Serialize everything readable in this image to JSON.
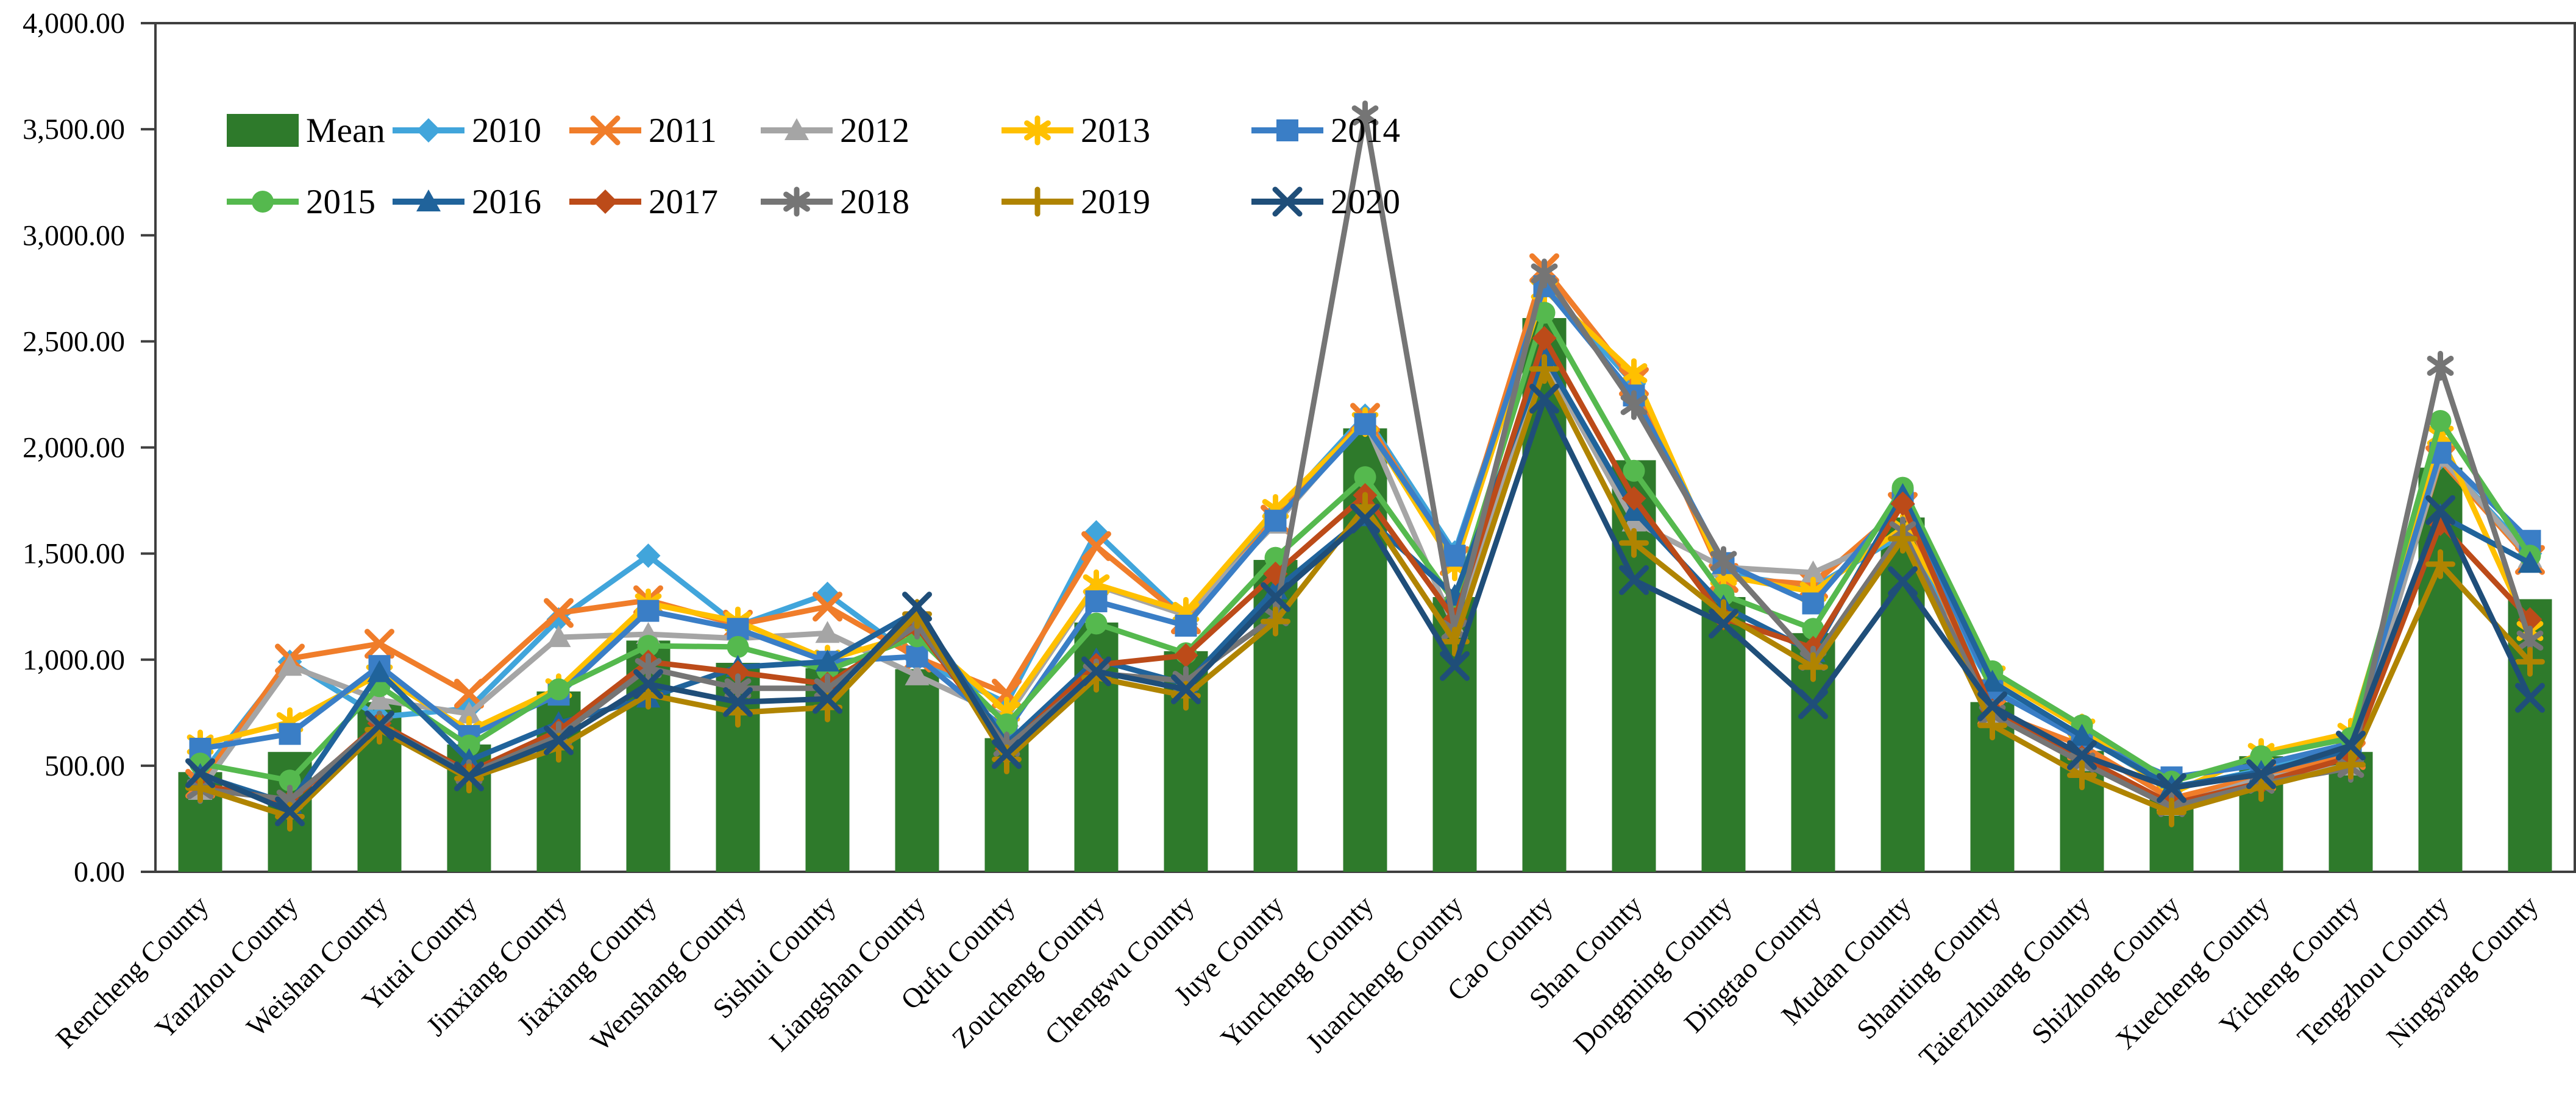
{
  "page": {
    "background": "#ffffff"
  },
  "chart_data": {
    "type": "bar",
    "subtype": "bar-line-combo",
    "title": "",
    "xlabel": "",
    "ylabel": "",
    "ylim": [
      0,
      4000
    ],
    "ytick_step": 500,
    "ytick_labels": [
      "0.00",
      "500.00",
      "1,000.00",
      "1,500.00",
      "2,000.00",
      "2,500.00",
      "3,000.00",
      "3,500.00",
      "4,000.00"
    ],
    "grid": false,
    "legend_position": "top-left-inside",
    "legend_rows": [
      [
        "Mean",
        "2010",
        "2011",
        "2012",
        "2013",
        "2014"
      ],
      [
        "2015",
        "2016",
        "2017",
        "2018",
        "2019",
        "2020"
      ]
    ],
    "categories": [
      "Rencheng County",
      "Yanzhou County",
      "Weishan County",
      "Yutai County",
      "Jinxiang County",
      "Jiaxiang County",
      "Wenshang County",
      "Sishui County",
      "Liangshan County",
      "Qufu County",
      "Zoucheng County",
      "Chengwu County",
      "Juye County",
      "Yuncheng County",
      "Juancheng County",
      "Cao County",
      "Shan County",
      "Dongming County",
      "Dingtao County",
      "Mudan County",
      "Shanting County",
      "Taierzhuang County",
      "Shizhong County",
      "Xuecheng County",
      "Yicheng County",
      "Tengzhou County",
      "Ningyang County"
    ],
    "bar_series": {
      "name": "Mean",
      "color": "#2E7A2B",
      "values": [
        470,
        565,
        800,
        600,
        850,
        1090,
        985,
        960,
        955,
        630,
        1175,
        1040,
        1470,
        2090,
        1295,
        2610,
        1940,
        1295,
        1125,
        1670,
        800,
        570,
        350,
        545,
        565,
        1905,
        1285
      ]
    },
    "series": [
      {
        "name": "2010",
        "color": "#41A5DB",
        "marker": "diamond",
        "values": [
          450,
          990,
          730,
          770,
          1190,
          1490,
          1160,
          1310,
          1000,
          795,
          1600,
          1195,
          1690,
          2150,
          1505,
          2770,
          2300,
          1405,
          1340,
          1590,
          870,
          645,
          390,
          480,
          590,
          1950,
          1500
        ]
      },
      {
        "name": "2011",
        "color": "#F07D2A",
        "marker": "x",
        "values": [
          415,
          1005,
          1075,
          840,
          1220,
          1280,
          1165,
          1250,
          1010,
          840,
          1535,
          1190,
          1660,
          2140,
          1465,
          2845,
          2310,
          1385,
          1355,
          1720,
          755,
          595,
          345,
          450,
          550,
          1940,
          1470
        ]
      },
      {
        "name": "2012",
        "color": "#A5A5A5",
        "marker": "triangle",
        "values": [
          385,
          970,
          810,
          745,
          1105,
          1120,
          1100,
          1125,
          925,
          730,
          1350,
          1210,
          1640,
          2125,
          1150,
          2410,
          1650,
          1435,
          1410,
          1600,
          745,
          520,
          310,
          440,
          500,
          1955,
          1480
        ]
      },
      {
        "name": "2013",
        "color": "#FFC000",
        "marker": "star",
        "values": [
          600,
          705,
          930,
          665,
          865,
          1265,
          1180,
          1000,
          1125,
          755,
          1355,
          1225,
          1710,
          2120,
          1440,
          2745,
          2350,
          1395,
          1320,
          1620,
          925,
          675,
          370,
          560,
          655,
          2055,
          1135
        ]
      },
      {
        "name": "2014",
        "color": "#3A7EC6",
        "marker": "square",
        "values": [
          580,
          650,
          970,
          640,
          835,
          1230,
          1145,
          990,
          1015,
          665,
          1275,
          1160,
          1655,
          2110,
          1490,
          2760,
          2245,
          1455,
          1265,
          1760,
          855,
          625,
          445,
          505,
          605,
          1975,
          1560
        ]
      },
      {
        "name": "2015",
        "color": "#55B94E",
        "marker": "circle",
        "values": [
          510,
          430,
          875,
          595,
          860,
          1065,
          1060,
          950,
          1110,
          695,
          1170,
          1030,
          1480,
          1860,
          1270,
          2635,
          1890,
          1305,
          1145,
          1810,
          945,
          690,
          425,
          545,
          630,
          2125,
          1490
        ]
      },
      {
        "name": "2016",
        "color": "#20639B",
        "marker": "triangle",
        "values": [
          455,
          320,
          940,
          525,
          700,
          820,
          965,
          990,
          1230,
          605,
          1000,
          885,
          1330,
          1675,
          1300,
          2430,
          1700,
          1250,
          1035,
          1775,
          895,
          640,
          400,
          470,
          575,
          1680,
          1455
        ]
      },
      {
        "name": "2017",
        "color": "#BC4B19",
        "marker": "diamond",
        "values": [
          410,
          330,
          700,
          470,
          665,
          990,
          940,
          885,
          1155,
          580,
          975,
          1020,
          1405,
          1775,
          1190,
          2515,
          1760,
          1195,
          1055,
          1735,
          760,
          540,
          320,
          420,
          540,
          1640,
          1190
        ]
      },
      {
        "name": "2018",
        "color": "#757575",
        "marker": "star",
        "values": [
          390,
          340,
          690,
          460,
          640,
          960,
          865,
          865,
          1165,
          590,
          935,
          900,
          1205,
          3565,
          1140,
          2820,
          2200,
          1465,
          995,
          1605,
          740,
          515,
          305,
          415,
          490,
          2385,
          1090
        ]
      },
      {
        "name": "2019",
        "color": "#B08401",
        "marker": "plus",
        "values": [
          395,
          260,
          670,
          440,
          585,
          835,
          750,
          775,
          1215,
          530,
          915,
          830,
          1180,
          1720,
          1085,
          2370,
          1550,
          1215,
          965,
          1570,
          690,
          455,
          280,
          400,
          505,
          1450,
          990
        ]
      },
      {
        "name": "2020",
        "color": "#1F4E79",
        "marker": "x",
        "values": [
          465,
          285,
          690,
          450,
          620,
          885,
          800,
          815,
          1250,
          555,
          945,
          860,
          1295,
          1665,
          970,
          2230,
          1375,
          1170,
          790,
          1370,
          780,
          550,
          395,
          460,
          595,
          1705,
          820
        ]
      }
    ]
  }
}
